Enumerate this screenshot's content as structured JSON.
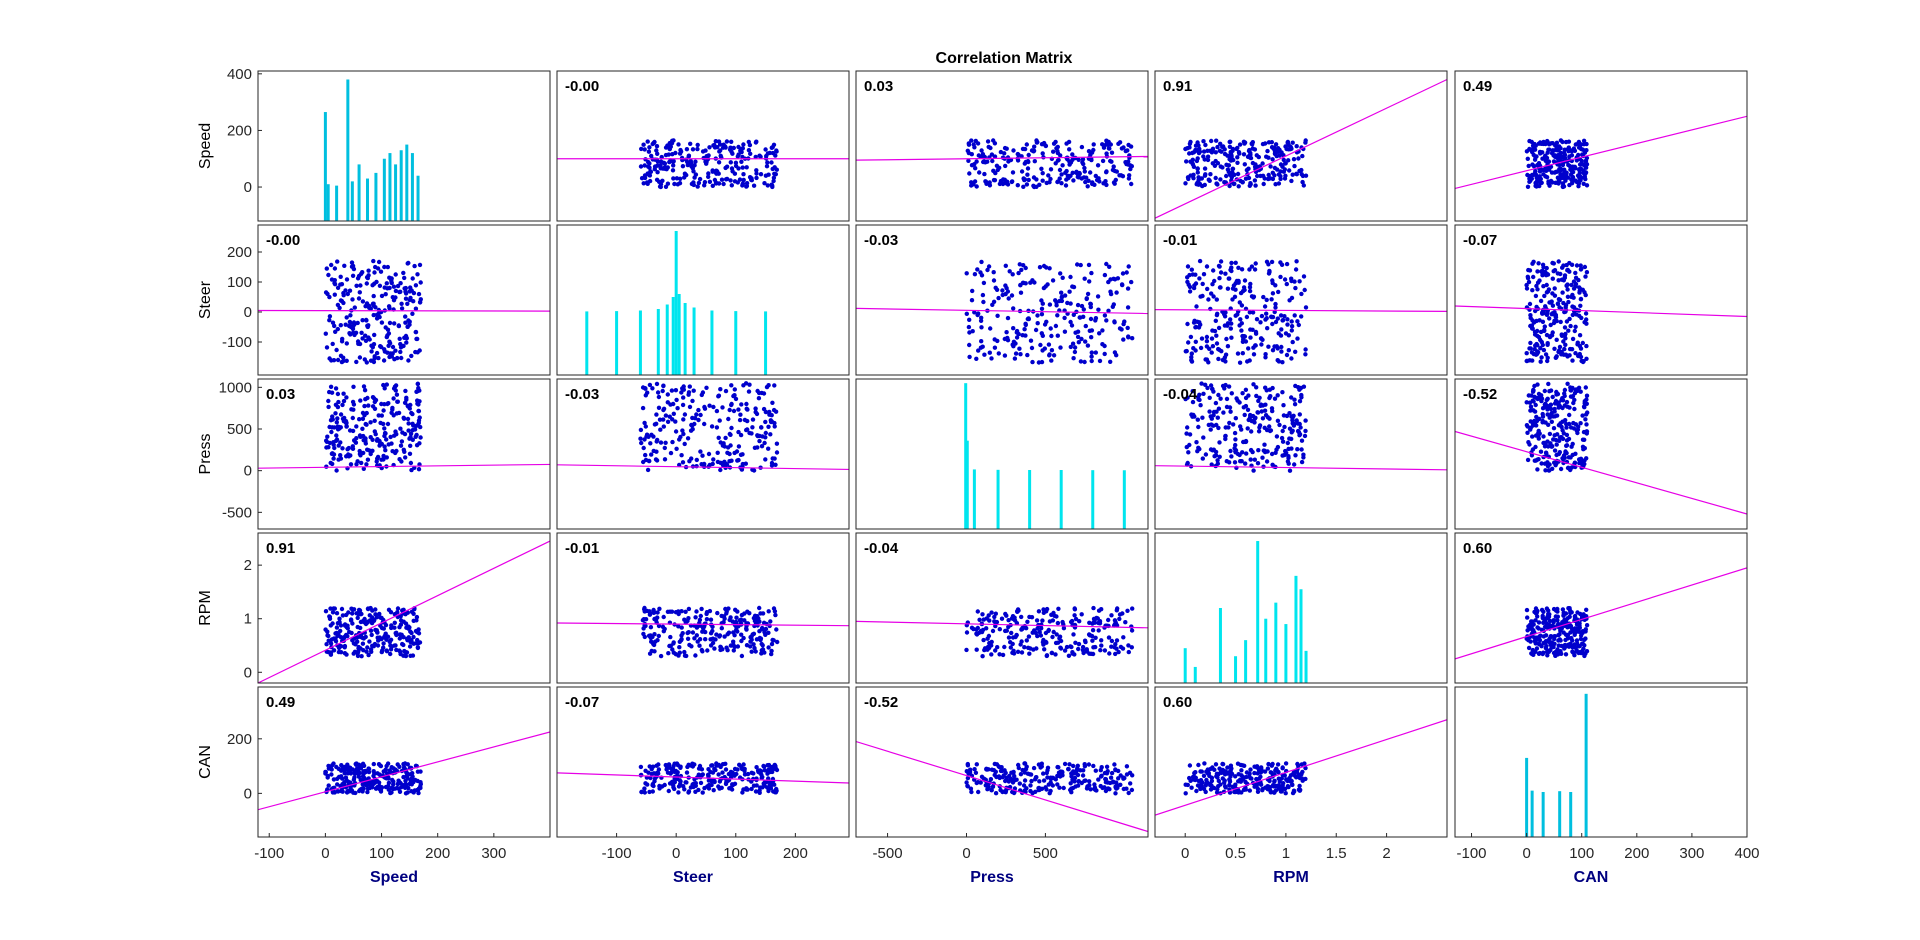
{
  "chart_data": {
    "type": "scatter",
    "title": "Correlation Matrix",
    "variables": [
      "Speed",
      "Steer",
      "Press",
      "RPM",
      "CAN"
    ],
    "colors": {
      "scatter": "#0000CC",
      "histogram": "#00E5EE",
      "histogram_dark": "#00BFDF",
      "fit_line": "#E600E6",
      "xlabel": "#000080"
    },
    "axes": {
      "x": [
        {
          "lim": [
            -120,
            400
          ],
          "ticks": [
            -100,
            0,
            100,
            200,
            300
          ],
          "tick_labels": [
            "-100",
            "0",
            "100",
            "200",
            "300"
          ]
        },
        {
          "lim": [
            -200,
            290
          ],
          "ticks": [
            -100,
            0,
            100,
            200
          ],
          "tick_labels": [
            "-100",
            "0",
            "100",
            "200"
          ]
        },
        {
          "lim": [
            -700,
            1150
          ],
          "ticks": [
            -500,
            0,
            500
          ],
          "tick_labels": [
            "-500",
            "0",
            "500"
          ]
        },
        {
          "lim": [
            -0.3,
            2.6
          ],
          "ticks": [
            0,
            0.5,
            1,
            1.5,
            2
          ],
          "tick_labels": [
            "0",
            "0.5",
            "1",
            "1.5",
            "2"
          ]
        },
        {
          "lim": [
            -130,
            400
          ],
          "ticks": [
            -100,
            0,
            100,
            200,
            300,
            400
          ],
          "tick_labels": [
            "-100",
            "0",
            "100",
            "200",
            "300",
            "400"
          ]
        }
      ],
      "y": [
        {
          "lim": [
            -120,
            410
          ],
          "ticks": [
            0,
            200,
            400
          ],
          "tick_labels": [
            "0",
            "200",
            "400"
          ]
        },
        {
          "lim": [
            -210,
            290
          ],
          "ticks": [
            -100,
            0,
            100,
            200
          ],
          "tick_labels": [
            "-100",
            "0",
            "100",
            "200"
          ]
        },
        {
          "lim": [
            -700,
            1100
          ],
          "ticks": [
            -500,
            0,
            500,
            1000
          ],
          "tick_labels": [
            "-500",
            "0",
            "500",
            "1000"
          ]
        },
        {
          "lim": [
            -0.2,
            2.6
          ],
          "ticks": [
            0,
            1,
            2
          ],
          "tick_labels": [
            "0",
            "1",
            "2"
          ]
        },
        {
          "lim": [
            -160,
            390
          ],
          "ticks": [
            0,
            200
          ],
          "tick_labels": [
            "0",
            "200"
          ]
        }
      ]
    },
    "correlations": [
      [
        null,
        "-0.00",
        "0.03",
        "0.91",
        "0.49"
      ],
      [
        "-0.00",
        null,
        "-0.03",
        "-0.01",
        "-0.07"
      ],
      [
        "0.03",
        "-0.03",
        null,
        "-0.04",
        "-0.52"
      ],
      [
        "0.91",
        "-0.01",
        "-0.04",
        null,
        "0.60"
      ],
      [
        "0.49",
        "-0.07",
        "-0.52",
        "0.60",
        null
      ]
    ],
    "fit_lines": [
      [
        null,
        {
          "y": [
            100,
            100
          ]
        },
        {
          "y": [
            95,
            108
          ]
        },
        {
          "y": [
            -110,
            380
          ]
        },
        {
          "y": [
            -5,
            250
          ]
        }
      ],
      [
        {
          "y": [
            5,
            3
          ]
        },
        null,
        {
          "y": [
            12,
            -5
          ]
        },
        {
          "y": [
            8,
            2
          ]
        },
        {
          "y": [
            20,
            -15
          ]
        }
      ],
      [
        {
          "y": [
            30,
            75
          ]
        },
        {
          "y": [
            70,
            15
          ]
        },
        null,
        {
          "y": [
            60,
            10
          ]
        },
        {
          "y": [
            470,
            -520
          ]
        }
      ],
      [
        {
          "y": [
            -0.2,
            2.45
          ]
        },
        {
          "y": [
            0.92,
            0.87
          ]
        },
        {
          "y": [
            0.95,
            0.83
          ]
        },
        null,
        {
          "y": [
            0.25,
            1.95
          ]
        }
      ],
      [
        {
          "y": [
            -60,
            225
          ]
        },
        {
          "y": [
            75,
            38
          ]
        },
        {
          "y": [
            190,
            -140
          ]
        },
        {
          "y": [
            -80,
            270
          ]
        },
        null
      ]
    ],
    "histograms": [
      {
        "bins": [
          [
            0,
            265
          ],
          [
            5,
            10
          ],
          [
            20,
            5
          ],
          [
            40,
            380
          ],
          [
            48,
            20
          ],
          [
            60,
            80
          ],
          [
            75,
            30
          ],
          [
            90,
            50
          ],
          [
            105,
            100
          ],
          [
            115,
            120
          ],
          [
            125,
            80
          ],
          [
            135,
            130
          ],
          [
            145,
            150
          ],
          [
            155,
            120
          ],
          [
            165,
            40
          ]
        ]
      },
      {
        "bins": [
          [
            -150,
            2
          ],
          [
            -100,
            3
          ],
          [
            -60,
            5
          ],
          [
            -30,
            10
          ],
          [
            -15,
            25
          ],
          [
            -5,
            50
          ],
          [
            0,
            270
          ],
          [
            5,
            60
          ],
          [
            15,
            30
          ],
          [
            30,
            15
          ],
          [
            60,
            5
          ],
          [
            100,
            3
          ],
          [
            150,
            2
          ]
        ]
      },
      {
        "bins": [
          [
            -5,
            1050
          ],
          [
            5,
            360
          ],
          [
            50,
            15
          ],
          [
            200,
            10
          ],
          [
            400,
            8
          ],
          [
            600,
            8
          ],
          [
            800,
            6
          ],
          [
            1000,
            5
          ]
        ]
      },
      {
        "bins": [
          [
            0,
            0.45
          ],
          [
            0.1,
            0.1
          ],
          [
            0.35,
            1.2
          ],
          [
            0.5,
            0.3
          ],
          [
            0.6,
            0.6
          ],
          [
            0.72,
            2.45
          ],
          [
            0.8,
            1.0
          ],
          [
            0.9,
            1.3
          ],
          [
            1.0,
            0.9
          ],
          [
            1.1,
            1.8
          ],
          [
            1.15,
            1.55
          ],
          [
            1.2,
            0.4
          ]
        ]
      },
      {
        "bins": [
          [
            0,
            130
          ],
          [
            10,
            10
          ],
          [
            30,
            5
          ],
          [
            60,
            8
          ],
          [
            80,
            5
          ],
          [
            108,
            365
          ]
        ]
      }
    ]
  }
}
